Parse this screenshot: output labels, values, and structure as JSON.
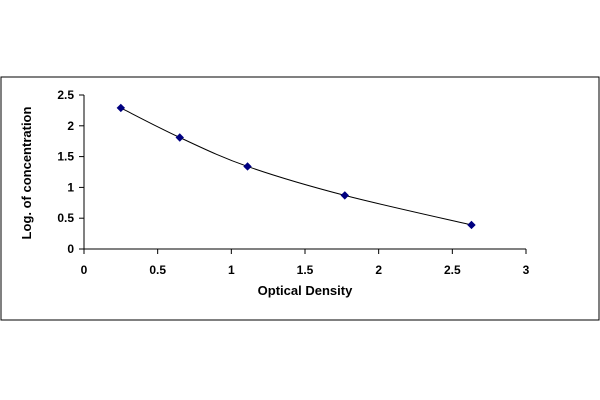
{
  "chart_data": {
    "type": "scatter",
    "xlabel": "Optical Density",
    "ylabel": "Log. of concentration",
    "xlim": [
      0,
      3
    ],
    "ylim": [
      0,
      2.5
    ],
    "x_ticks": [
      "0",
      "0.5",
      "1",
      "1.5",
      "2",
      "2.5",
      "3"
    ],
    "y_ticks": [
      "0",
      "0.5",
      "1",
      "1.5",
      "2",
      "2.5"
    ],
    "grid": false,
    "legend": "none",
    "series": [
      {
        "points": [
          {
            "x": 0.25,
            "y": 2.29
          },
          {
            "x": 0.65,
            "y": 1.81
          },
          {
            "x": 1.11,
            "y": 1.34
          },
          {
            "x": 1.77,
            "y": 0.87
          },
          {
            "x": 2.63,
            "y": 0.39
          }
        ],
        "marker": "diamond",
        "trendline": "smooth",
        "color": "#000080"
      }
    ],
    "line_color": "#000000",
    "frame_color": "#000000"
  }
}
